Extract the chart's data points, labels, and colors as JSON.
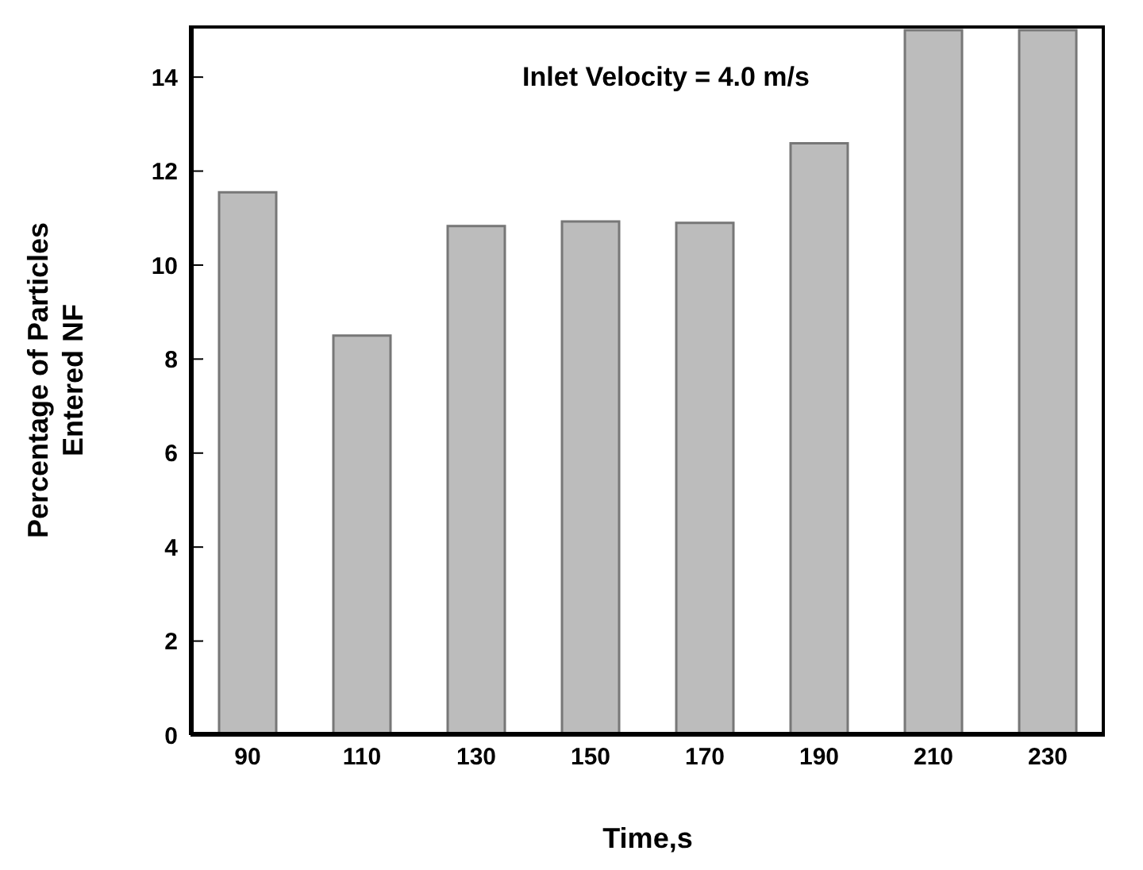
{
  "chart_data": {
    "type": "bar",
    "xlabel": "Time,s",
    "ylabel": "Percentage of Particles\nEntered NF",
    "annotations": [
      "Inlet Velocity = 4.0 m/s"
    ],
    "categories": [
      "90",
      "110",
      "130",
      "150",
      "170",
      "190",
      "210",
      "230"
    ],
    "values": [
      11.55,
      8.5,
      10.83,
      10.93,
      10.9,
      12.59,
      15.0,
      15.0
    ],
    "color": "#bcbcbc",
    "ylim": [
      0,
      15.1
    ],
    "yticks": [
      0,
      2,
      4,
      6,
      8,
      10,
      12,
      14
    ],
    "grid": false
  }
}
